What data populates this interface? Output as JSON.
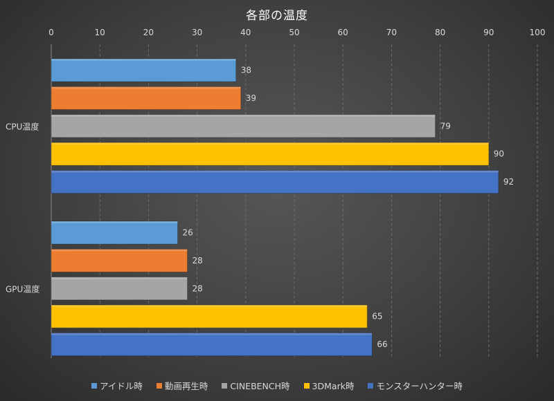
{
  "chart_data": {
    "type": "bar",
    "orientation": "horizontal",
    "title": "各部の温度",
    "categories": [
      "CPU温度",
      "GPU温度"
    ],
    "xlim": [
      0,
      100
    ],
    "x_ticks": [
      "0",
      "10",
      "20",
      "30",
      "40",
      "50",
      "60",
      "70",
      "80",
      "90",
      "100"
    ],
    "grid": true,
    "legend_position": "bottom",
    "series": [
      {
        "name": "アイドル時",
        "color": "#5b9bd5",
        "values": [
          38,
          26
        ]
      },
      {
        "name": "動画再生時",
        "color": "#ed7d31",
        "values": [
          39,
          28
        ]
      },
      {
        "name": "CINEBENCH時",
        "color": "#a5a5a5",
        "values": [
          79,
          28
        ]
      },
      {
        "name": "3DMark時",
        "color": "#ffc000",
        "values": [
          90,
          65
        ]
      },
      {
        "name": "モンスターハンター時",
        "color": "#4472c4",
        "values": [
          92,
          66
        ]
      }
    ]
  }
}
